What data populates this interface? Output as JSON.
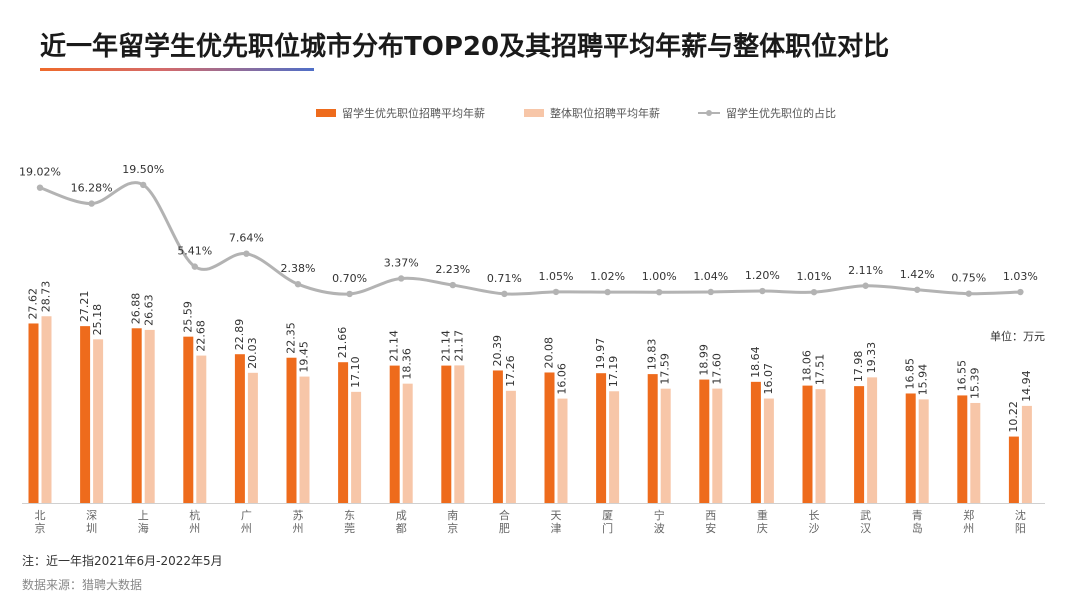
{
  "header": {
    "title": "近一年留学生优先职位城市分布TOP20及其招聘平均年薪与整体职位对比"
  },
  "legend": {
    "series1": "留学生优先职位招聘平均年薪",
    "series2": "整体职位招聘平均年薪",
    "series3": "留学生优先职位的占比"
  },
  "unit_label": "单位：万元",
  "footer": {
    "note": "注：近一年指2021年6月-2022年5月",
    "source": "数据来源：猎聘大数据"
  },
  "colors": {
    "overseas": "#ee6b1c",
    "overall": "#f7c6a8",
    "ratio_line": "#b3b3b3",
    "title_rule_start": "#ef6a2b",
    "title_rule_end": "#4f6fc8"
  },
  "chart_data": {
    "type": "bar",
    "title": "近一年留学生优先职位城市分布TOP20及其招聘平均年薪与整体职位对比",
    "categories": [
      "北京",
      "深圳",
      "上海",
      "杭州",
      "广州",
      "苏州",
      "东莞",
      "成都",
      "南京",
      "合肥",
      "天津",
      "厦门",
      "宁波",
      "西安",
      "重庆",
      "长沙",
      "武汉",
      "青岛",
      "郑州",
      "沈阳"
    ],
    "series": [
      {
        "name": "留学生优先职位招聘平均年薪",
        "type": "bar",
        "values": [
          27.62,
          27.21,
          26.88,
          25.59,
          22.89,
          22.35,
          21.66,
          21.14,
          21.14,
          20.39,
          20.08,
          19.97,
          19.83,
          18.99,
          18.64,
          18.06,
          17.98,
          16.85,
          16.55,
          10.22
        ]
      },
      {
        "name": "整体职位招聘平均年薪",
        "type": "bar",
        "values": [
          28.73,
          25.18,
          26.63,
          22.68,
          20.03,
          19.45,
          17.1,
          18.36,
          21.17,
          17.26,
          16.06,
          17.19,
          17.59,
          17.6,
          16.07,
          17.51,
          19.33,
          15.94,
          15.39,
          14.94
        ]
      },
      {
        "name": "留学生优先职位的占比",
        "type": "line",
        "unit": "%",
        "values": [
          19.02,
          16.28,
          19.5,
          5.41,
          7.64,
          2.38,
          0.7,
          3.37,
          2.23,
          0.71,
          1.05,
          1.02,
          1.0,
          1.04,
          1.2,
          1.01,
          2.11,
          1.42,
          0.75,
          1.03
        ]
      }
    ],
    "bar_unit": "万元",
    "bar_ylim": [
      0,
      30
    ],
    "line_ylim": [
      0,
      20
    ],
    "legend_position": "top-center",
    "grid": false
  }
}
